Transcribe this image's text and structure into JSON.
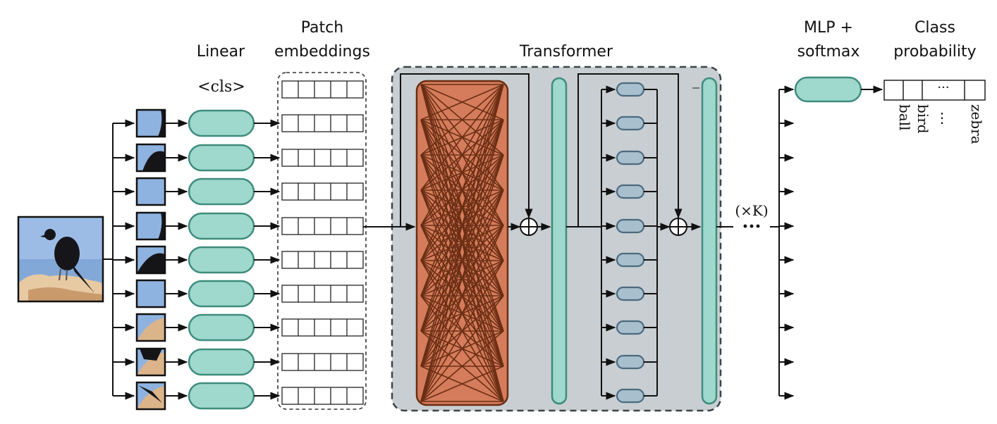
{
  "labels": {
    "linear": "Linear",
    "patch_line1": "Patch",
    "patch_line2": "embeddings",
    "transformer": "Transformer",
    "mlp_line1": "MLP +",
    "mlp_line2": "softmax",
    "class_line1": "Class",
    "class_line2": "probability",
    "cls_token": "<cls>",
    "repeat": "(×K)",
    "dots": "···",
    "class_names": [
      "ball",
      "bird",
      "⋮",
      "zebra"
    ]
  },
  "counts": {
    "patches": 9,
    "embedding_cells": 5,
    "ffn_units": 10,
    "attention_ports": 10
  },
  "colors": {
    "linear_fill": "#9fd8cc",
    "linear_stroke": "#3e8c7e",
    "transformer_bg": "#c8ced1",
    "attention_fill": "#d47c5b",
    "attention_line": "#6b2e14",
    "ffn_fill": "#a8bfce",
    "ffn_stroke": "#4b6a80"
  },
  "icons": {
    "input_image": "bird-photo",
    "patches": "bird-image-patch"
  }
}
